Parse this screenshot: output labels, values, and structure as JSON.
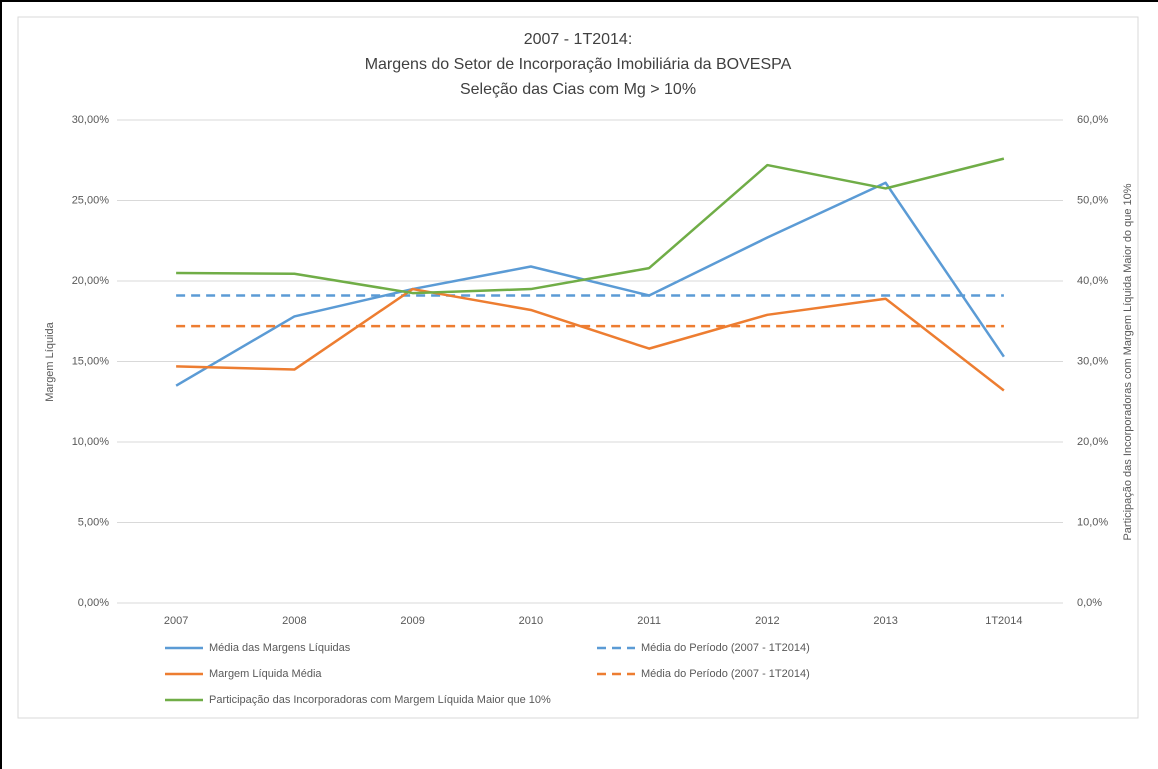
{
  "chart_data": {
    "type": "line",
    "title": [
      "2007 - 1T2014:",
      "Margens do Setor de Incorporação Imobiliária da BOVESPA",
      "Seleção das Cias com Mg > 10%"
    ],
    "y_label": "Margem Líquida",
    "y2_label": "Participação das Incorporadoras com Margem Líquida Maior do que 10%",
    "categories": [
      "2007",
      "2008",
      "2009",
      "2010",
      "2011",
      "2012",
      "2013",
      "1T2014"
    ],
    "ylim": [
      0,
      30
    ],
    "yticks": [
      {
        "value": 0,
        "label": "0,00%"
      },
      {
        "value": 5,
        "label": "5,00%"
      },
      {
        "value": 10,
        "label": "10,00%"
      },
      {
        "value": 15,
        "label": "15,00%"
      },
      {
        "value": 20,
        "label": "20,00%"
      },
      {
        "value": 25,
        "label": "25,00%"
      },
      {
        "value": 30,
        "label": "30,00%"
      }
    ],
    "y2lim": [
      0,
      60
    ],
    "y2ticks": [
      {
        "value": 0,
        "label": "0,0%"
      },
      {
        "value": 10,
        "label": "10,0%"
      },
      {
        "value": 20,
        "label": "20,0%"
      },
      {
        "value": 30,
        "label": "30,0%"
      },
      {
        "value": 40,
        "label": "40,0%"
      },
      {
        "value": 50,
        "label": "50,0%"
      },
      {
        "value": 60,
        "label": "60,0%"
      }
    ],
    "grid": true,
    "series": [
      {
        "name": "Média das Margens Líquidas",
        "color": "#5b9bd5",
        "values": [
          13.5,
          17.8,
          19.5,
          20.9,
          19.1,
          22.7,
          26.1,
          15.3
        ]
      },
      {
        "name": "Média do Período (2007 - 1T2014)",
        "color": "#5b9bd5",
        "dashed": true,
        "values": [
          19.1,
          19.1,
          19.1,
          19.1,
          19.1,
          19.1,
          19.1,
          19.1
        ]
      },
      {
        "name": "Margem Líquida Média",
        "color": "#ed7d31",
        "values": [
          14.7,
          14.5,
          19.5,
          18.2,
          15.8,
          17.9,
          18.9,
          13.2
        ]
      },
      {
        "name": "Média do Período (2007 - 1T2014)",
        "color": "#ed7d31",
        "dashed": true,
        "values": [
          17.2,
          17.2,
          17.2,
          17.2,
          17.2,
          17.2,
          17.2,
          17.2
        ]
      },
      {
        "name": "Participação das Incorporadoras com Margem Líquida Maior que 10%",
        "color": "#70ad47",
        "axis": "y2",
        "values": [
          41.0,
          40.9,
          38.5,
          39.0,
          41.6,
          54.4,
          51.5,
          55.2
        ]
      }
    ]
  }
}
